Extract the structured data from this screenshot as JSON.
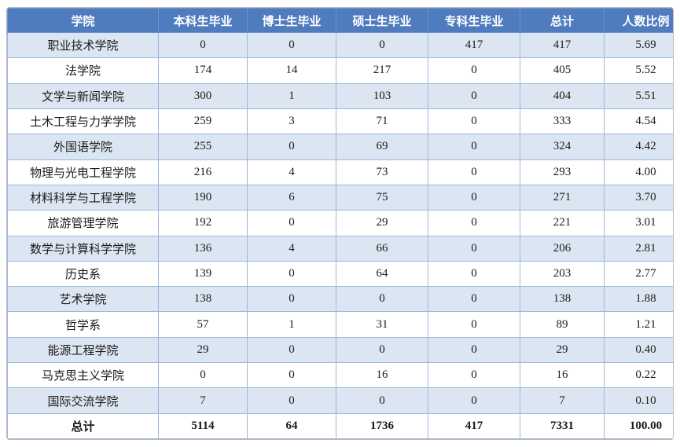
{
  "table": {
    "headers": [
      "学院",
      "本科生毕业",
      "博士生毕业",
      "硕士生毕业",
      "专科生毕业",
      "总计",
      "人数比例"
    ],
    "rows": [
      [
        "职业技术学院",
        "0",
        "0",
        "0",
        "417",
        "417",
        "5.69"
      ],
      [
        "法学院",
        "174",
        "14",
        "217",
        "0",
        "405",
        "5.52"
      ],
      [
        "文学与新闻学院",
        "300",
        "1",
        "103",
        "0",
        "404",
        "5.51"
      ],
      [
        "土木工程与力学学院",
        "259",
        "3",
        "71",
        "0",
        "333",
        "4.54"
      ],
      [
        "外国语学院",
        "255",
        "0",
        "69",
        "0",
        "324",
        "4.42"
      ],
      [
        "物理与光电工程学院",
        "216",
        "4",
        "73",
        "0",
        "293",
        "4.00"
      ],
      [
        "材料科学与工程学院",
        "190",
        "6",
        "75",
        "0",
        "271",
        "3.70"
      ],
      [
        "旅游管理学院",
        "192",
        "0",
        "29",
        "0",
        "221",
        "3.01"
      ],
      [
        "数学与计算科学学院",
        "136",
        "4",
        "66",
        "0",
        "206",
        "2.81"
      ],
      [
        "历史系",
        "139",
        "0",
        "64",
        "0",
        "203",
        "2.77"
      ],
      [
        "艺术学院",
        "138",
        "0",
        "0",
        "0",
        "138",
        "1.88"
      ],
      [
        "哲学系",
        "57",
        "1",
        "31",
        "0",
        "89",
        "1.21"
      ],
      [
        "能源工程学院",
        "29",
        "0",
        "0",
        "0",
        "29",
        "0.40"
      ],
      [
        "马克思主义学院",
        "0",
        "0",
        "16",
        "0",
        "16",
        "0.22"
      ],
      [
        "国际交流学院",
        "7",
        "0",
        "0",
        "0",
        "7",
        "0.10"
      ],
      [
        "总计",
        "5114",
        "64",
        "1736",
        "417",
        "7331",
        "100.00"
      ]
    ],
    "total_row_label": "总计"
  },
  "colors": {
    "header_bg": "#4e7cbf",
    "header_text": "#ffffff",
    "row_alt_bg": "#dce6f2",
    "row_bg": "#ffffff",
    "cell_border": "#9db7dd",
    "outer_border": "#b9b9b9",
    "body_text": "#1a1a1a"
  },
  "chart_data": {
    "type": "table",
    "columns": [
      "学院",
      "本科生毕业",
      "博士生毕业",
      "硕士生毕业",
      "专科生毕业",
      "总计",
      "人数比例"
    ],
    "rows": [
      [
        "职业技术学院",
        0,
        0,
        0,
        417,
        417,
        5.69
      ],
      [
        "法学院",
        174,
        14,
        217,
        0,
        405,
        5.52
      ],
      [
        "文学与新闻学院",
        300,
        1,
        103,
        0,
        404,
        5.51
      ],
      [
        "土木工程与力学学院",
        259,
        3,
        71,
        0,
        333,
        4.54
      ],
      [
        "外国语学院",
        255,
        0,
        69,
        0,
        324,
        4.42
      ],
      [
        "物理与光电工程学院",
        216,
        4,
        73,
        0,
        293,
        4.0
      ],
      [
        "材料科学与工程学院",
        190,
        6,
        75,
        0,
        271,
        3.7
      ],
      [
        "旅游管理学院",
        192,
        0,
        29,
        0,
        221,
        3.01
      ],
      [
        "数学与计算科学学院",
        136,
        4,
        66,
        0,
        206,
        2.81
      ],
      [
        "历史系",
        139,
        0,
        64,
        0,
        203,
        2.77
      ],
      [
        "艺术学院",
        138,
        0,
        0,
        0,
        138,
        1.88
      ],
      [
        "哲学系",
        57,
        1,
        31,
        0,
        89,
        1.21
      ],
      [
        "能源工程学院",
        29,
        0,
        0,
        0,
        29,
        0.4
      ],
      [
        "马克思主义学院",
        0,
        0,
        16,
        0,
        16,
        0.22
      ],
      [
        "国际交流学院",
        7,
        0,
        0,
        0,
        7,
        0.1
      ],
      [
        "总计",
        5114,
        64,
        1736,
        417,
        7331,
        100.0
      ]
    ]
  }
}
